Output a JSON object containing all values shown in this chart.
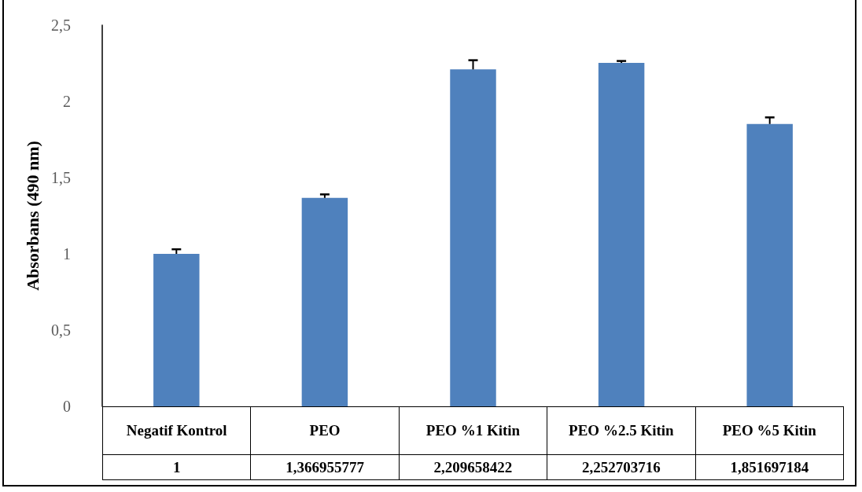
{
  "chart_data": {
    "type": "bar",
    "ylabel": "Absorbans (490 nm)",
    "categories": [
      "Negatif Kontrol",
      "PEO",
      "PEO %1 Kitin",
      "PEO %2.5 Kitin",
      "PEO %5 Kitin"
    ],
    "values": [
      1,
      1.366955777,
      2.209658422,
      2.252703716,
      1.851697184
    ],
    "value_labels": [
      "1",
      "1,366955777",
      "2,209658422",
      "2,252703716",
      "1,851697184"
    ],
    "errors": [
      [
        1,
        1.03
      ],
      [
        1.366955777,
        1.39
      ],
      [
        2.209658422,
        2.27
      ],
      [
        2.252703716,
        2.265
      ],
      [
        1.851697184,
        1.895
      ]
    ],
    "color": "#4f81bd",
    "ylim": [
      0,
      2.5
    ],
    "yticks": [
      0,
      {
        "value": 0.5,
        "label": "0,5"
      },
      1,
      {
        "value": 1.5,
        "label": "1,5"
      },
      2,
      {
        "value": 2.5,
        "label": "2,5"
      }
    ],
    "grid": false
  }
}
